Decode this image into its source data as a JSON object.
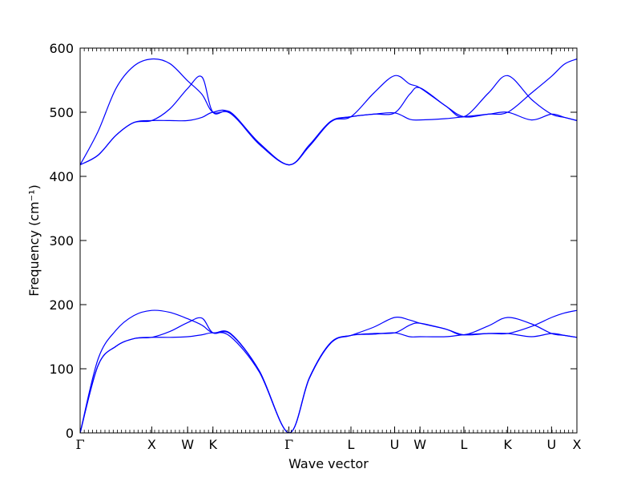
{
  "chart_data": {
    "type": "line",
    "title": "",
    "xlabel": "Wave vector",
    "ylabel": "Frequency (cm⁻¹)",
    "ylim": [
      0,
      600
    ],
    "yticks": [
      0,
      100,
      200,
      300,
      400,
      500,
      600
    ],
    "kpath": [
      "Γ",
      "X",
      "W",
      "K",
      "Γ",
      "L",
      "U",
      "W",
      "L",
      "K",
      "U",
      "X"
    ],
    "kdist": [
      0,
      1,
      1.5,
      1.854,
      2.914,
      3.78,
      4.39,
      4.744,
      5.356,
      5.968,
      6.58,
      6.934
    ],
    "xlim": [
      0,
      6.934
    ],
    "grid": false,
    "line_color": "#0000ff",
    "series": [
      {
        "x": [
          0,
          0.25,
          0.5,
          0.75,
          1,
          1.25,
          1.5,
          1.7,
          1.854,
          2.1,
          2.5,
          2.914,
          3.2,
          3.5,
          3.78,
          4.1,
          4.39,
          4.6,
          4.744,
          5.1,
          5.356,
          5.7,
          5.968,
          6.3,
          6.58,
          6.76,
          6.934
        ],
        "y": [
          0,
          105,
          135,
          147,
          149,
          149,
          150,
          153,
          156,
          150,
          95,
          0,
          85,
          140,
          152,
          154,
          156,
          150,
          150,
          150,
          153,
          155,
          155,
          150,
          155,
          152,
          149
        ]
      },
      {
        "x": [
          0,
          0.25,
          0.5,
          0.75,
          1,
          1.25,
          1.5,
          1.7,
          1.854,
          2.1,
          2.5,
          2.914,
          3.2,
          3.5,
          3.78,
          4.1,
          4.39,
          4.6,
          4.744,
          5.1,
          5.356,
          5.7,
          5.968,
          6.3,
          6.58,
          6.76,
          6.934
        ],
        "y": [
          0,
          105,
          135,
          147,
          149,
          158,
          172,
          179,
          156,
          154,
          97,
          0,
          86,
          141,
          152,
          155,
          156,
          168,
          171,
          162,
          153,
          155,
          155,
          166,
          180,
          187,
          191
        ]
      },
      {
        "x": [
          0,
          0.25,
          0.5,
          0.75,
          1,
          1.25,
          1.5,
          1.7,
          1.854,
          2.1,
          2.5,
          2.914,
          3.2,
          3.5,
          3.78,
          4.1,
          4.39,
          4.6,
          4.744,
          5.1,
          5.356,
          5.7,
          5.968,
          6.3,
          6.58,
          6.76,
          6.934
        ],
        "y": [
          0,
          115,
          160,
          183,
          191,
          188,
          178,
          168,
          156,
          155,
          97,
          0,
          86,
          141,
          152,
          165,
          180,
          176,
          171,
          162,
          153,
          167,
          180,
          170,
          155,
          152,
          149
        ]
      },
      {
        "x": [
          0,
          0.25,
          0.5,
          0.75,
          1,
          1.25,
          1.5,
          1.7,
          1.854,
          2.1,
          2.5,
          2.914,
          3.2,
          3.5,
          3.78,
          4.1,
          4.39,
          4.6,
          4.744,
          5.1,
          5.356,
          5.7,
          5.968,
          6.3,
          6.58,
          6.76,
          6.934
        ],
        "y": [
          418,
          433,
          464,
          484,
          487,
          487,
          487,
          492,
          500,
          499,
          450,
          418,
          447,
          485,
          493,
          497,
          499,
          489,
          488,
          490,
          493,
          497,
          500,
          488,
          497,
          492,
          487
        ]
      },
      {
        "x": [
          0,
          0.25,
          0.5,
          0.75,
          1,
          1.25,
          1.5,
          1.7,
          1.854,
          2.1,
          2.5,
          2.914,
          3.2,
          3.5,
          3.78,
          4.1,
          4.39,
          4.6,
          4.744,
          5.1,
          5.356,
          5.7,
          5.968,
          6.3,
          6.58,
          6.76,
          6.934
        ],
        "y": [
          418,
          433,
          464,
          484,
          487,
          505,
          537,
          555,
          500,
          500,
          452,
          418,
          449,
          486,
          493,
          497,
          499,
          528,
          538,
          510,
          493,
          497,
          500,
          530,
          556,
          575,
          583
        ]
      },
      {
        "x": [
          0,
          0.25,
          0.5,
          0.75,
          1,
          1.25,
          1.5,
          1.7,
          1.854,
          2.1,
          2.5,
          2.914,
          3.2,
          3.5,
          3.78,
          4.1,
          4.39,
          4.6,
          4.744,
          5.1,
          5.356,
          5.7,
          5.968,
          6.3,
          6.58,
          6.76,
          6.934
        ],
        "y": [
          418,
          470,
          537,
          572,
          583,
          576,
          549,
          528,
          500,
          498,
          452,
          418,
          449,
          486,
          493,
          530,
          557,
          544,
          538,
          510,
          493,
          530,
          557,
          520,
          497,
          492,
          487
        ]
      }
    ]
  }
}
